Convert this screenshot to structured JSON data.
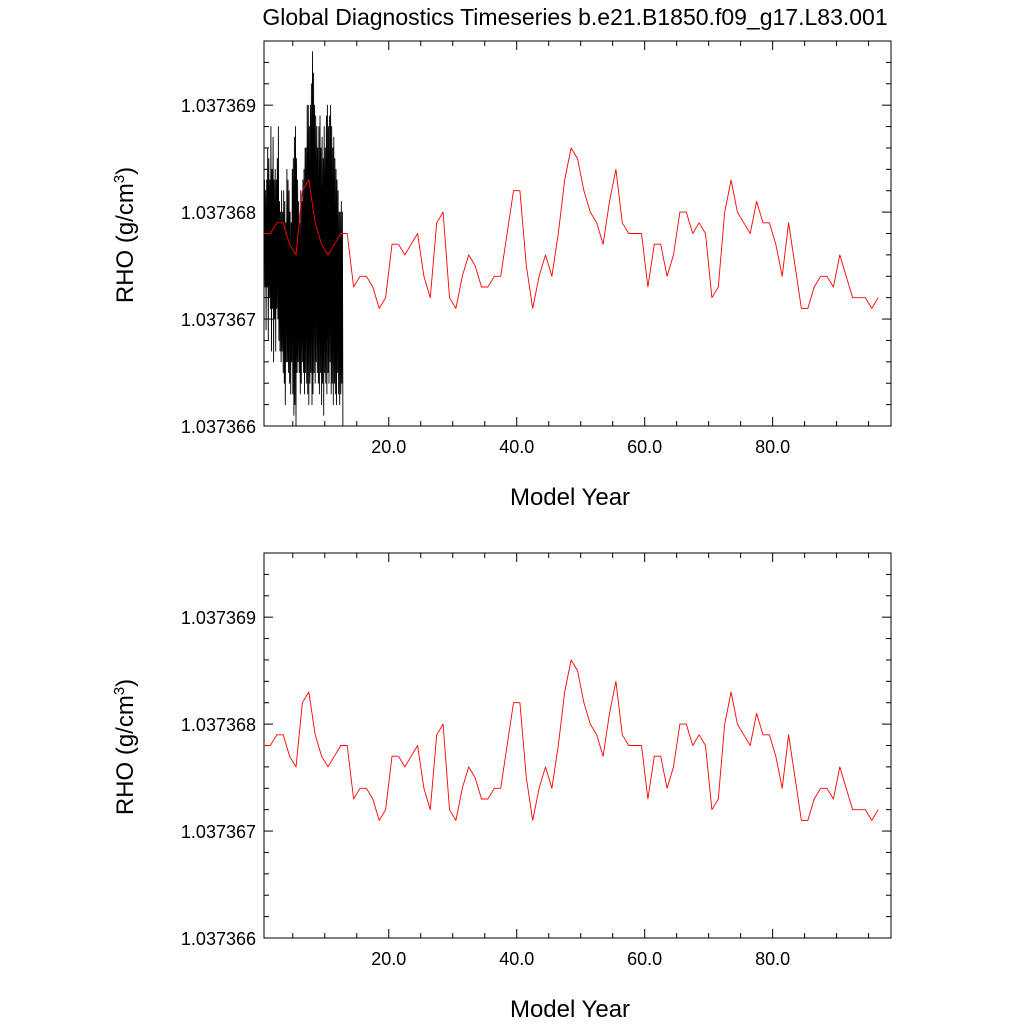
{
  "chart_data": [
    {
      "type": "line",
      "title": "Global Diagnostics Timeseries b.e21.B1850.f09_g17.L83.001",
      "xlabel": "Model Year",
      "ylabel": "RHO (g/cm",
      "ylabel_sup": "3",
      "ylabel_close": ")",
      "xlim": [
        0.5,
        98.5
      ],
      "ylim": [
        1.037366,
        1.0373696
      ],
      "xticks": [
        20,
        40,
        60,
        80
      ],
      "xtick_labels": [
        "20.0",
        "40.0",
        "60.0",
        "80.0"
      ],
      "yticks": [
        1.037366,
        1.037367,
        1.037368,
        1.037369
      ],
      "ytick_labels": [
        "1.037366",
        "1.037367",
        "1.037368",
        "1.037369"
      ],
      "grid": false,
      "series": [
        {
          "color": "#000000",
          "x_start": 0.5,
          "x_step": 0.08333,
          "values": [
            1.0373677,
            1.0373683,
            1.0373673,
            1.0373682,
            1.0373669,
            1.0373683,
            1.0373673,
            1.0373686,
            1.0373668,
            1.0373685,
            1.0373672,
            1.0373683,
            1.0373671,
            1.0373688,
            1.0373667,
            1.0373684,
            1.0373671,
            1.0373687,
            1.0373666,
            1.0373683,
            1.037367,
            1.0373684,
            1.0373667,
            1.0373683,
            1.0373671,
            1.0373685,
            1.037367,
            1.0373688,
            1.0373668,
            1.0373681,
            1.0373667,
            1.037368,
            1.0373666,
            1.0373682,
            1.0373667,
            1.037368,
            1.0373665,
            1.0373682,
            1.0373664,
            1.0373681,
            1.0373662,
            1.0373679,
            1.0373666,
            1.0373684,
            1.0373666,
            1.0373683,
            1.0373665,
            1.0373682,
            1.0373664,
            1.037368,
            1.0373663,
            1.0373679,
            1.0373666,
            1.0373684,
            1.0373663,
            1.0373685,
            1.0373661,
            1.0373687,
            1.0373662,
            1.0373688,
            1.037366,
            1.0373685,
            1.0373665,
            1.0373683,
            1.0373666,
            1.0373681,
            1.0373665,
            1.0373679,
            1.0373663,
            1.0373682,
            1.0373664,
            1.0373681,
            1.0373666,
            1.0373683,
            1.0373665,
            1.0373684,
            1.0373663,
            1.0373686,
            1.0373665,
            1.0373686,
            1.0373664,
            1.037369,
            1.0373663,
            1.037369,
            1.0373662,
            1.0373688,
            1.0373664,
            1.037369,
            1.0373665,
            1.0373692,
            1.0373662,
            1.0373695,
            1.0373663,
            1.0373693,
            1.0373665,
            1.037369,
            1.0373664,
            1.0373689,
            1.0373666,
            1.0373688,
            1.0373665,
            1.0373686,
            1.0373664,
            1.0373688,
            1.0373663,
            1.0373689,
            1.0373665,
            1.0373686,
            1.0373662,
            1.0373687,
            1.0373664,
            1.0373685,
            1.0373661,
            1.0373688,
            1.0373665,
            1.0373686,
            1.0373664,
            1.0373689,
            1.0373663,
            1.037369,
            1.0373665,
            1.0373688,
            1.0373664,
            1.0373689,
            1.0373666,
            1.037369,
            1.0373663,
            1.0373688,
            1.0373664,
            1.0373686,
            1.0373662,
            1.0373687,
            1.0373664,
            1.0373685,
            1.0373663,
            1.0373684,
            1.0373662,
            1.0373683,
            1.0373665,
            1.0373682,
            1.0373663,
            1.037368,
            1.0373662,
            1.037368,
            1.0373663,
            1.0373681,
            1.0373664,
            1.037368,
            1.037366
          ]
        },
        {
          "color": "#ff0000",
          "x_start": 0.5,
          "x_step": 1,
          "values": [
            1.0373678,
            1.0373678,
            1.0373679,
            1.0373679,
            1.0373677,
            1.0373676,
            1.0373682,
            1.0373683,
            1.0373679,
            1.0373677,
            1.0373676,
            1.0373677,
            1.0373678,
            1.0373678,
            1.0373673,
            1.0373674,
            1.0373674,
            1.0373673,
            1.0373671,
            1.0373672,
            1.0373677,
            1.0373677,
            1.0373676,
            1.0373677,
            1.0373678,
            1.0373674,
            1.0373672,
            1.0373679,
            1.037368,
            1.0373672,
            1.0373671,
            1.0373674,
            1.0373676,
            1.0373675,
            1.0373673,
            1.0373673,
            1.0373674,
            1.0373674,
            1.0373678,
            1.0373682,
            1.0373682,
            1.0373675,
            1.0373671,
            1.0373674,
            1.0373676,
            1.0373674,
            1.0373678,
            1.0373683,
            1.0373686,
            1.0373685,
            1.0373682,
            1.037368,
            1.0373679,
            1.0373677,
            1.0373681,
            1.0373684,
            1.0373679,
            1.0373678,
            1.0373678,
            1.0373678,
            1.0373673,
            1.0373677,
            1.0373677,
            1.0373674,
            1.0373676,
            1.037368,
            1.037368,
            1.0373678,
            1.0373679,
            1.0373678,
            1.0373672,
            1.0373673,
            1.037368,
            1.0373683,
            1.037368,
            1.0373679,
            1.0373678,
            1.0373681,
            1.0373679,
            1.0373679,
            1.0373677,
            1.0373674,
            1.0373679,
            1.0373675,
            1.0373671,
            1.0373671,
            1.0373673,
            1.0373674,
            1.0373674,
            1.0373673,
            1.0373676,
            1.0373674,
            1.0373672,
            1.0373672,
            1.0373672,
            1.0373671,
            1.0373672
          ]
        }
      ]
    },
    {
      "type": "line",
      "xlabel": "Model Year",
      "ylabel": "RHO (g/cm",
      "ylabel_sup": "3",
      "ylabel_close": ")",
      "xlim": [
        0.5,
        98.5
      ],
      "ylim": [
        1.037366,
        1.0373696
      ],
      "xticks": [
        20,
        40,
        60,
        80
      ],
      "xtick_labels": [
        "20.0",
        "40.0",
        "60.0",
        "80.0"
      ],
      "yticks": [
        1.037366,
        1.037367,
        1.037368,
        1.037369
      ],
      "ytick_labels": [
        "1.037366",
        "1.037367",
        "1.037368",
        "1.037369"
      ],
      "grid": false,
      "series": [
        {
          "color": "#ff0000",
          "x_start": 0.5,
          "x_step": 1,
          "values": [
            1.0373678,
            1.0373678,
            1.0373679,
            1.0373679,
            1.0373677,
            1.0373676,
            1.0373682,
            1.0373683,
            1.0373679,
            1.0373677,
            1.0373676,
            1.0373677,
            1.0373678,
            1.0373678,
            1.0373673,
            1.0373674,
            1.0373674,
            1.0373673,
            1.0373671,
            1.0373672,
            1.0373677,
            1.0373677,
            1.0373676,
            1.0373677,
            1.0373678,
            1.0373674,
            1.0373672,
            1.0373679,
            1.037368,
            1.0373672,
            1.0373671,
            1.0373674,
            1.0373676,
            1.0373675,
            1.0373673,
            1.0373673,
            1.0373674,
            1.0373674,
            1.0373678,
            1.0373682,
            1.0373682,
            1.0373675,
            1.0373671,
            1.0373674,
            1.0373676,
            1.0373674,
            1.0373678,
            1.0373683,
            1.0373686,
            1.0373685,
            1.0373682,
            1.037368,
            1.0373679,
            1.0373677,
            1.0373681,
            1.0373684,
            1.0373679,
            1.0373678,
            1.0373678,
            1.0373678,
            1.0373673,
            1.0373677,
            1.0373677,
            1.0373674,
            1.0373676,
            1.037368,
            1.037368,
            1.0373678,
            1.0373679,
            1.0373678,
            1.0373672,
            1.0373673,
            1.037368,
            1.0373683,
            1.037368,
            1.0373679,
            1.0373678,
            1.0373681,
            1.0373679,
            1.0373679,
            1.0373677,
            1.0373674,
            1.0373679,
            1.0373675,
            1.0373671,
            1.0373671,
            1.0373673,
            1.0373674,
            1.0373674,
            1.0373673,
            1.0373676,
            1.0373674,
            1.0373672,
            1.0373672,
            1.0373672,
            1.0373671,
            1.0373672
          ]
        }
      ]
    }
  ]
}
